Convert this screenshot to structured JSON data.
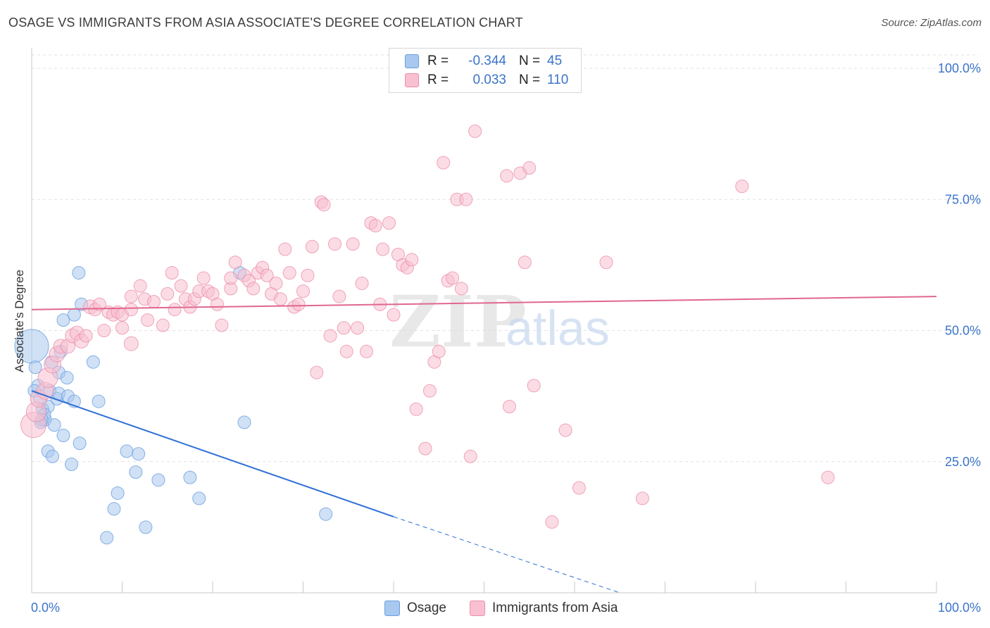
{
  "title": "OSAGE VS IMMIGRANTS FROM ASIA ASSOCIATE'S DEGREE CORRELATION CHART",
  "source": "Source: ZipAtlas.com",
  "watermark": {
    "zip": "ZIP",
    "atlas": "atlas"
  },
  "legend_top": {
    "rows": [
      {
        "r_label": "R =",
        "r_value": "-0.344",
        "n_label": "N =",
        "n_value": "45",
        "color": "#a9c8ef",
        "border": "#6a9fe0"
      },
      {
        "r_label": "R =",
        "r_value": "0.033",
        "n_label": "N =",
        "n_value": "110",
        "color": "#f8c0d0",
        "border": "#ec8eaa"
      }
    ]
  },
  "legend_bottom": {
    "items": [
      {
        "label": "Osage",
        "color": "#a9c8ef",
        "border": "#6a9fe0"
      },
      {
        "label": "Immigrants from Asia",
        "color": "#f8c0d0",
        "border": "#ec8eaa"
      }
    ]
  },
  "chart_data": {
    "type": "scatter",
    "title": "OSAGE VS IMMIGRANTS FROM ASIA ASSOCIATE'S DEGREE CORRELATION CHART",
    "xlabel": "",
    "ylabel": "Associate's Degree",
    "xlim": [
      0,
      100
    ],
    "ylim": [
      0,
      100
    ],
    "x_tick_labels": [
      {
        "value": 0,
        "label": "0.0%"
      },
      {
        "value": 100,
        "label": "100.0%"
      }
    ],
    "y_tick_labels": [
      {
        "value": 25,
        "label": "25.0%"
      },
      {
        "value": 50,
        "label": "50.0%"
      },
      {
        "value": 75,
        "label": "75.0%"
      },
      {
        "value": 100,
        "label": "100.0%"
      }
    ],
    "grid": true,
    "series": [
      {
        "name": "Osage",
        "color": "#a9c8ef",
        "stroke": "#6a9fe0",
        "r": -0.344,
        "n": 45,
        "trend": {
          "x0": 0,
          "y0": 38.5,
          "x1": 40,
          "y1": 14.5,
          "dashed_to_x": 65,
          "dashed_to_y": 0,
          "color": "#2e6fd6"
        },
        "points": [
          [
            0.0,
            47.0,
            24
          ],
          [
            0.4,
            43.0,
            9
          ],
          [
            0.7,
            39.5,
            9
          ],
          [
            1.0,
            32.5,
            9
          ],
          [
            1.2,
            35.0,
            9
          ],
          [
            1.5,
            33.0,
            9
          ],
          [
            1.8,
            35.5,
            9
          ],
          [
            1.8,
            27.0,
            9
          ],
          [
            2.0,
            38.5,
            9
          ],
          [
            2.2,
            44.0,
            9
          ],
          [
            2.3,
            26.0,
            9
          ],
          [
            2.5,
            32.0,
            9
          ],
          [
            2.8,
            37.0,
            9
          ],
          [
            3.0,
            38.0,
            9
          ],
          [
            3.0,
            42.0,
            9
          ],
          [
            3.2,
            46.0,
            9
          ],
          [
            3.5,
            30.0,
            9
          ],
          [
            3.5,
            52.0,
            9
          ],
          [
            3.9,
            41.0,
            9
          ],
          [
            4.0,
            37.5,
            9
          ],
          [
            4.4,
            24.5,
            9
          ],
          [
            4.7,
            36.5,
            9
          ],
          [
            4.7,
            53.0,
            9
          ],
          [
            5.3,
            28.5,
            9
          ],
          [
            5.5,
            55.0,
            9
          ],
          [
            5.2,
            61.0,
            9
          ],
          [
            6.8,
            44.0,
            9
          ],
          [
            7.4,
            36.5,
            9
          ],
          [
            8.3,
            10.5,
            9
          ],
          [
            9.1,
            16.0,
            9
          ],
          [
            9.5,
            19.0,
            9
          ],
          [
            10.5,
            27.0,
            9
          ],
          [
            11.5,
            23.0,
            9
          ],
          [
            11.8,
            26.5,
            9
          ],
          [
            12.6,
            12.5,
            9
          ],
          [
            14.0,
            21.5,
            9
          ],
          [
            17.5,
            22.0,
            9
          ],
          [
            18.5,
            18.0,
            9
          ],
          [
            23.0,
            61.0,
            9
          ],
          [
            23.5,
            32.5,
            9
          ],
          [
            32.5,
            15.0,
            9
          ],
          [
            0.3,
            38.5,
            9
          ],
          [
            1.4,
            34.0,
            9
          ],
          [
            0.9,
            37.0,
            9
          ],
          [
            1.1,
            33.0,
            9
          ]
        ]
      },
      {
        "name": "Immigrants from Asia",
        "color": "#f8c0d0",
        "stroke": "#ec8eaa",
        "r": 0.033,
        "n": 110,
        "trend": {
          "x0": 0,
          "y0": 54.0,
          "x1": 100,
          "y1": 56.5,
          "color": "#e0678f"
        },
        "points": [
          [
            0.2,
            32.0,
            18
          ],
          [
            0.5,
            34.5,
            14
          ],
          [
            0.8,
            37.0,
            12
          ],
          [
            1.5,
            38.5,
            12
          ],
          [
            1.8,
            41.0,
            14
          ],
          [
            2.3,
            43.5,
            12
          ],
          [
            2.8,
            45.5,
            11
          ],
          [
            3.2,
            47.0,
            10
          ],
          [
            4.0,
            47.0,
            10
          ],
          [
            4.5,
            49.0,
            10
          ],
          [
            5.0,
            49.5,
            10
          ],
          [
            5.5,
            48.0,
            10
          ],
          [
            6.0,
            49.0,
            9
          ],
          [
            6.5,
            54.5,
            10
          ],
          [
            7.0,
            54.0,
            9
          ],
          [
            7.5,
            55.0,
            9
          ],
          [
            8.0,
            50.0,
            9
          ],
          [
            8.5,
            53.5,
            9
          ],
          [
            9.0,
            53.0,
            9
          ],
          [
            9.5,
            53.5,
            9
          ],
          [
            10.0,
            53.0,
            9
          ],
          [
            10.0,
            50.5,
            9
          ],
          [
            11.0,
            54.0,
            9
          ],
          [
            11.0,
            56.5,
            9
          ],
          [
            11.0,
            47.5,
            10
          ],
          [
            12.0,
            58.5,
            9
          ],
          [
            12.5,
            56.0,
            9
          ],
          [
            12.8,
            52.0,
            9
          ],
          [
            13.5,
            55.5,
            9
          ],
          [
            14.5,
            51.0,
            9
          ],
          [
            15.0,
            57.0,
            9
          ],
          [
            15.5,
            61.0,
            9
          ],
          [
            15.8,
            54.0,
            9
          ],
          [
            16.5,
            58.5,
            9
          ],
          [
            17.0,
            56.0,
            9
          ],
          [
            17.5,
            54.5,
            9
          ],
          [
            18.0,
            56.0,
            9
          ],
          [
            18.5,
            57.5,
            9
          ],
          [
            19.0,
            60.0,
            9
          ],
          [
            19.5,
            57.5,
            9
          ],
          [
            20.0,
            57.0,
            9
          ],
          [
            20.5,
            55.0,
            9
          ],
          [
            21.0,
            51.0,
            9
          ],
          [
            22.0,
            58.0,
            9
          ],
          [
            22.0,
            60.0,
            9
          ],
          [
            22.5,
            63.0,
            9
          ],
          [
            23.5,
            60.5,
            9
          ],
          [
            24.0,
            59.5,
            9
          ],
          [
            24.5,
            58.0,
            9
          ],
          [
            25.0,
            61.0,
            9
          ],
          [
            25.5,
            62.0,
            9
          ],
          [
            26.0,
            60.5,
            9
          ],
          [
            26.5,
            57.0,
            9
          ],
          [
            27.0,
            59.0,
            9
          ],
          [
            27.5,
            56.0,
            9
          ],
          [
            28.0,
            65.5,
            9
          ],
          [
            28.5,
            61.0,
            9
          ],
          [
            29.0,
            54.5,
            9
          ],
          [
            29.5,
            55.0,
            9
          ],
          [
            30.0,
            57.5,
            9
          ],
          [
            30.5,
            60.5,
            9
          ],
          [
            31.0,
            66.0,
            9
          ],
          [
            31.5,
            42.0,
            9
          ],
          [
            32.0,
            74.5,
            9
          ],
          [
            32.3,
            74.0,
            9
          ],
          [
            33.0,
            49.0,
            9
          ],
          [
            33.5,
            66.5,
            9
          ],
          [
            34.0,
            56.5,
            9
          ],
          [
            34.5,
            50.5,
            9
          ],
          [
            34.8,
            46.0,
            9
          ],
          [
            35.5,
            66.5,
            9
          ],
          [
            36.0,
            50.5,
            9
          ],
          [
            36.5,
            59.0,
            9
          ],
          [
            37.0,
            46.0,
            9
          ],
          [
            37.5,
            70.5,
            9
          ],
          [
            38.0,
            70.0,
            9
          ],
          [
            38.5,
            55.0,
            9
          ],
          [
            38.8,
            65.5,
            9
          ],
          [
            39.5,
            70.5,
            9
          ],
          [
            40.0,
            53.0,
            9
          ],
          [
            40.5,
            64.5,
            9
          ],
          [
            41.0,
            62.5,
            9
          ],
          [
            41.5,
            62.0,
            9
          ],
          [
            42.0,
            63.5,
            9
          ],
          [
            42.5,
            35.0,
            9
          ],
          [
            43.5,
            27.5,
            9
          ],
          [
            44.0,
            38.5,
            9
          ],
          [
            44.5,
            44.0,
            9
          ],
          [
            45.0,
            46.0,
            9
          ],
          [
            45.5,
            82.0,
            9
          ],
          [
            46.0,
            59.5,
            9
          ],
          [
            46.5,
            60.0,
            9
          ],
          [
            47.0,
            75.0,
            9
          ],
          [
            47.5,
            58.0,
            9
          ],
          [
            48.0,
            75.0,
            9
          ],
          [
            48.5,
            26.0,
            9
          ],
          [
            49.0,
            88.0,
            9
          ],
          [
            52.5,
            79.5,
            9
          ],
          [
            52.8,
            35.5,
            9
          ],
          [
            54.0,
            80.0,
            9
          ],
          [
            54.5,
            63.0,
            9
          ],
          [
            55.0,
            81.0,
            9
          ],
          [
            55.5,
            39.5,
            9
          ],
          [
            57.5,
            13.5,
            9
          ],
          [
            59.0,
            31.0,
            9
          ],
          [
            60.5,
            20.0,
            9
          ],
          [
            63.5,
            63.0,
            9
          ],
          [
            67.5,
            18.0,
            9
          ],
          [
            78.5,
            77.5,
            9
          ],
          [
            88.0,
            22.0,
            9
          ]
        ]
      }
    ]
  }
}
